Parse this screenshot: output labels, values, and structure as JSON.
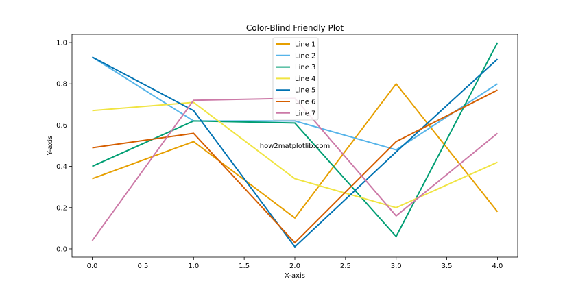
{
  "chart_data": {
    "type": "line",
    "title": "Color-Blind Friendly Plot",
    "xlabel": "X-axis",
    "ylabel": "Y-axis",
    "x": [
      0,
      1,
      2,
      3,
      4
    ],
    "xlim": [
      -0.2,
      4.2
    ],
    "ylim": [
      -0.04,
      1.04
    ],
    "xticks": [
      0.0,
      0.5,
      1.0,
      1.5,
      2.0,
      2.5,
      3.0,
      3.5,
      4.0
    ],
    "xtick_labels": [
      "0.0",
      "0.5",
      "1.0",
      "1.5",
      "2.0",
      "2.5",
      "3.0",
      "3.5",
      "4.0"
    ],
    "yticks": [
      0.0,
      0.2,
      0.4,
      0.6,
      0.8,
      1.0
    ],
    "ytick_labels": [
      "0.0",
      "0.2",
      "0.4",
      "0.6",
      "0.8",
      "1.0"
    ],
    "grid": false,
    "legend_position": "top-center",
    "annotation": "how2matplotlib.com",
    "series": [
      {
        "name": "Line 1",
        "color": "#E69F00",
        "values": [
          0.34,
          0.52,
          0.15,
          0.8,
          0.18
        ]
      },
      {
        "name": "Line 2",
        "color": "#56B4E9",
        "values": [
          0.93,
          0.62,
          0.62,
          0.48,
          0.8
        ]
      },
      {
        "name": "Line 3",
        "color": "#009E73",
        "values": [
          0.4,
          0.62,
          0.61,
          0.06,
          1.0
        ]
      },
      {
        "name": "Line 4",
        "color": "#F0E442",
        "values": [
          0.67,
          0.71,
          0.34,
          0.2,
          0.42
        ]
      },
      {
        "name": "Line 5",
        "color": "#0072B2",
        "values": [
          0.93,
          0.67,
          0.01,
          0.47,
          0.92
        ]
      },
      {
        "name": "Line 6",
        "color": "#D55E00",
        "values": [
          0.49,
          0.56,
          0.03,
          0.52,
          0.77
        ]
      },
      {
        "name": "Line 7",
        "color": "#CC79A7",
        "values": [
          0.04,
          0.72,
          0.73,
          0.16,
          0.56
        ]
      }
    ]
  }
}
